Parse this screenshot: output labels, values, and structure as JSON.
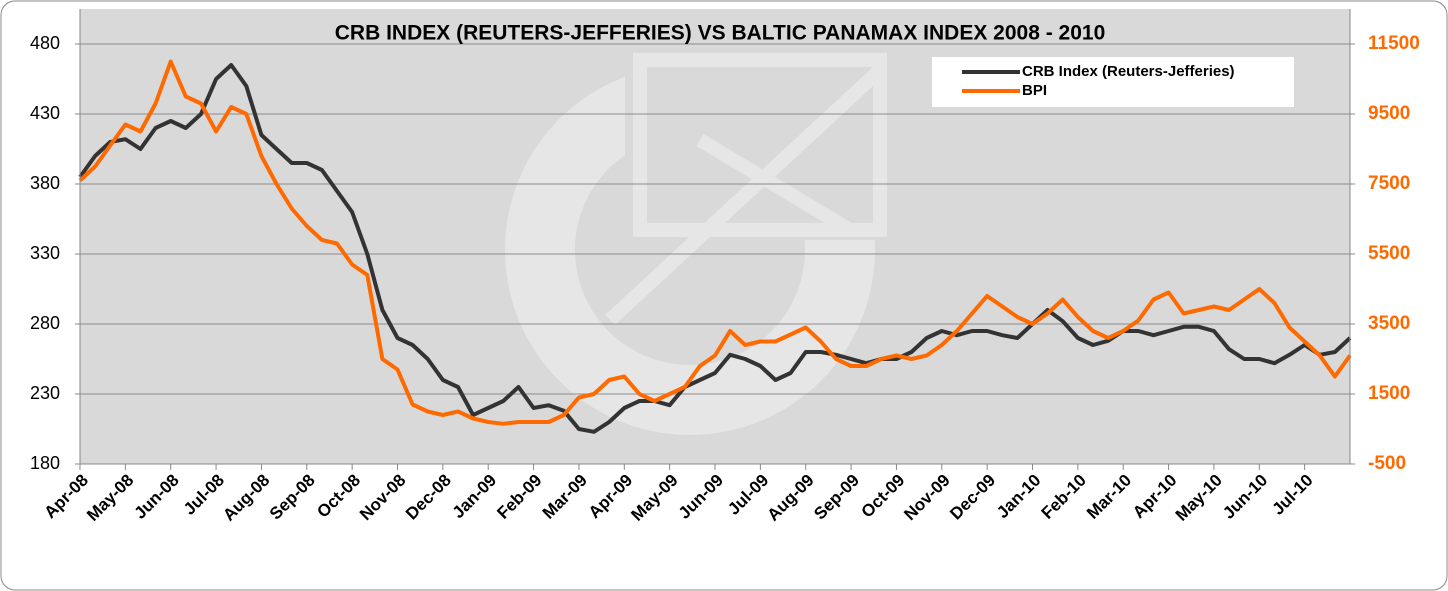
{
  "chart_data": {
    "type": "line",
    "title": "CRB INDEX (REUTERS-JEFFERIES) VS BALTIC PANAMAX INDEX 2008 - 2010",
    "categories": [
      "Apr-08",
      null,
      null,
      "May-08",
      null,
      null,
      "Jun-08",
      null,
      null,
      "Jul-08",
      null,
      null,
      "Aug-08",
      null,
      null,
      "Sep-08",
      null,
      null,
      "Oct-08",
      null,
      null,
      "Nov-08",
      null,
      null,
      "Dec-08",
      null,
      null,
      "Jan-09",
      null,
      null,
      "Feb-09",
      null,
      null,
      "Mar-09",
      null,
      null,
      "Apr-09",
      null,
      null,
      "May-09",
      null,
      null,
      "Jun-09",
      null,
      null,
      "Jul-09",
      null,
      null,
      "Aug-09",
      null,
      null,
      "Sep-09",
      null,
      null,
      "Oct-09",
      null,
      null,
      "Nov-09",
      null,
      null,
      "Dec-09",
      null,
      null,
      "Jan-10",
      null,
      null,
      "Feb-10",
      null,
      null,
      "Mar-10",
      null,
      null,
      "Apr-10",
      null,
      null,
      "May-10",
      null,
      null,
      "Jun-10",
      null,
      null,
      "Jul-10",
      null,
      null,
      null
    ],
    "series": [
      {
        "name": "CRB Index (Reuters-Jefferies)",
        "color": "#333333",
        "values": [
          385,
          400,
          410,
          412,
          405,
          420,
          425,
          420,
          430,
          455,
          465,
          450,
          415,
          405,
          395,
          395,
          390,
          375,
          360,
          330,
          290,
          270,
          265,
          255,
          240,
          235,
          215,
          220,
          225,
          235,
          220,
          222,
          218,
          205,
          203,
          210,
          220,
          225,
          225,
          222,
          235,
          240,
          245,
          258,
          255,
          250,
          240,
          245,
          260,
          260,
          258,
          255,
          252,
          255,
          255,
          260,
          270,
          275,
          272,
          275,
          275,
          272,
          270,
          280,
          290,
          282,
          270,
          265,
          268,
          275,
          275,
          272,
          275,
          278,
          278,
          275,
          262,
          255,
          255,
          252,
          258,
          265,
          258,
          260,
          270
        ]
      },
      {
        "name": "BPI",
        "color": "#ff6a00",
        "axis": "y2",
        "values": [
          7600,
          8000,
          8600,
          9200,
          9000,
          9800,
          11000,
          10000,
          9800,
          9000,
          9700,
          9500,
          8300,
          7500,
          6800,
          6300,
          5900,
          5800,
          5200,
          4900,
          2500,
          2200,
          1200,
          1000,
          900,
          1000,
          800,
          700,
          650,
          700,
          700,
          700,
          900,
          1400,
          1500,
          1900,
          2000,
          1500,
          1300,
          1500,
          1700,
          2300,
          2600,
          3300,
          2900,
          3000,
          3000,
          3200,
          3400,
          3000,
          2500,
          2300,
          2300,
          2500,
          2600,
          2500,
          2600,
          2900,
          3300,
          3800,
          4300,
          4000,
          3700,
          3500,
          3800,
          4200,
          3700,
          3300,
          3100,
          3300,
          3600,
          4200,
          4400,
          3800,
          3900,
          4000,
          3900,
          4200,
          4500,
          4100,
          3400,
          3000,
          2600,
          2000,
          2600
        ]
      }
    ],
    "ylim": [
      180,
      505
    ],
    "yticks": [
      180,
      230,
      280,
      330,
      380,
      430,
      480
    ],
    "y2lim": [
      -500,
      12500
    ],
    "y2ticks": [
      -500,
      1500,
      3500,
      5500,
      7500,
      9500,
      11500
    ],
    "grid": true,
    "legend": "upper right"
  }
}
